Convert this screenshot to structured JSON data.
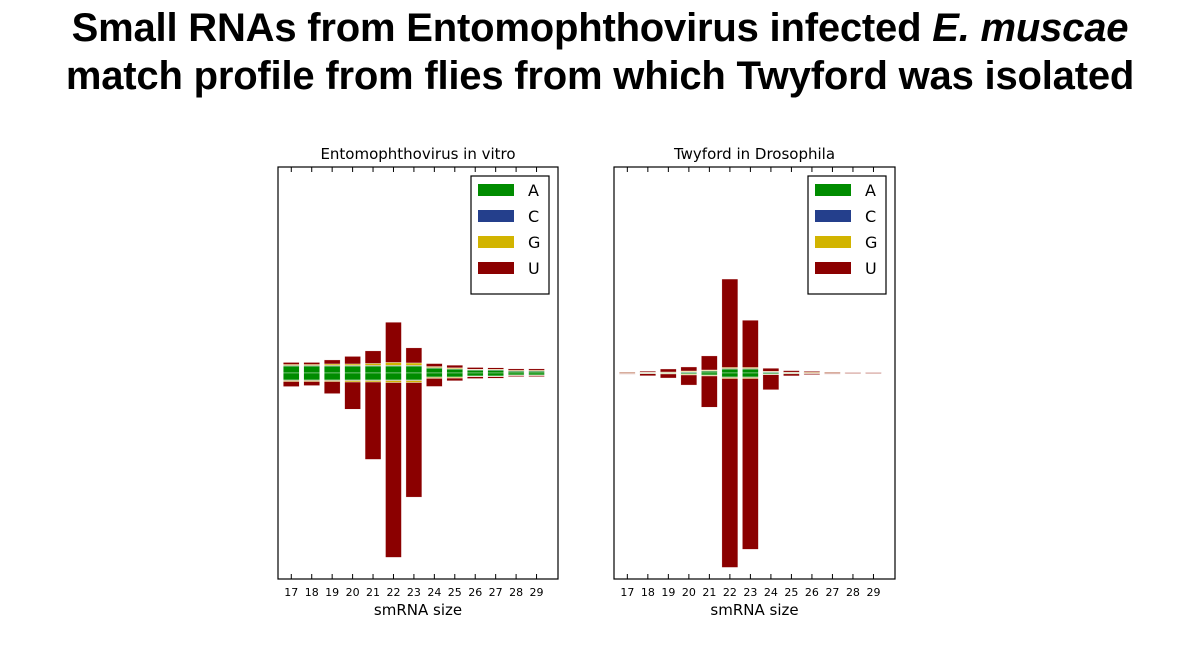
{
  "slide": {
    "title_line1_prefix": "Small RNAs from Entomophthovirus infected ",
    "title_line1_italic": "E. muscae",
    "title_line2": "match profile from flies from which Twyford was isolated"
  },
  "colors": {
    "A": "#008c00",
    "C": "#243f8c",
    "G": "#d2b400",
    "U": "#8b0000"
  },
  "chart_data": [
    {
      "type": "bar",
      "title": "Entomophthovirus in vitro",
      "xlabel": "smRNA size",
      "ylabel": "",
      "categories": [
        "17",
        "18",
        "19",
        "20",
        "21",
        "22",
        "23",
        "24",
        "25",
        "26",
        "27",
        "28",
        "29"
      ],
      "legend": [
        "A",
        "C",
        "G",
        "U"
      ],
      "legend_position": "top-right",
      "ylim": [
        -205,
        205
      ],
      "y_ticks_shown": false,
      "grid": false,
      "note": "positive = sense reads above baseline, negative = antisense reads below; values are stacked per nucleotide (A, C, G, U from baseline outward)",
      "series": [
        {
          "name": "A",
          "positive": [
            7,
            7,
            7,
            7,
            7,
            7,
            7,
            5,
            4,
            3,
            3,
            2,
            2
          ],
          "negative": [
            -7,
            -7,
            -7,
            -7,
            -7,
            -7,
            -7,
            -4,
            -4,
            -3,
            -3,
            -2,
            -2
          ]
        },
        {
          "name": "C",
          "positive": [
            0.5,
            0.5,
            0.5,
            0.5,
            0.5,
            0.5,
            0.5,
            0.4,
            0.3,
            0.3,
            0.2,
            0.2,
            0.2
          ],
          "negative": [
            -0.5,
            -0.5,
            -0.5,
            -0.5,
            -0.5,
            -0.5,
            -0.5,
            -0.4,
            -0.3,
            -0.3,
            -0.2,
            -0.2,
            -0.2
          ]
        },
        {
          "name": "G",
          "positive": [
            1,
            1,
            1.5,
            1.5,
            2,
            3,
            2.5,
            1,
            0.8,
            0.5,
            0.5,
            0.4,
            0.4
          ],
          "negative": [
            -1,
            -1,
            -1,
            -1.5,
            -1.5,
            -2,
            -2,
            -1,
            -0.8,
            -0.5,
            -0.5,
            -0.4,
            -0.4
          ]
        },
        {
          "name": "U",
          "positive": [
            2,
            2,
            4,
            7.5,
            12.5,
            40,
            15,
            3,
            2.7,
            1.7,
            1.5,
            1.5,
            1.5
          ],
          "negative": [
            -5,
            -4,
            -12,
            -27,
            -77,
            -174,
            -114,
            -8,
            -2.7,
            -1.7,
            -1.5,
            -1,
            -1
          ]
        }
      ]
    },
    {
      "type": "bar",
      "title": "Twyford in Drosophila",
      "xlabel": "smRNA size",
      "ylabel": "",
      "categories": [
        "17",
        "18",
        "19",
        "20",
        "21",
        "22",
        "23",
        "24",
        "25",
        "26",
        "27",
        "28",
        "29"
      ],
      "legend": [
        "A",
        "C",
        "G",
        "U"
      ],
      "legend_position": "top-right",
      "ylim": [
        -205,
        205
      ],
      "y_ticks_shown": false,
      "grid": false,
      "note": "positive = sense reads above baseline, negative = antisense reads below; values are stacked per nucleotide (A, C, G, U from baseline outward)",
      "series": [
        {
          "name": "A",
          "positive": [
            0.3,
            0.5,
            0.5,
            1,
            2,
            4,
            4,
            1,
            0.5,
            0.3,
            0.2,
            0.1,
            0.1
          ],
          "negative": [
            -0.3,
            -0.5,
            -0.5,
            -1,
            -2,
            -4,
            -4,
            -1,
            -0.5,
            -0.3,
            -0.2,
            -0.1,
            -0.1
          ]
        },
        {
          "name": "C",
          "positive": [
            0.1,
            0.1,
            0.1,
            0.2,
            0.3,
            0.5,
            0.5,
            0.2,
            0.1,
            0.1,
            0.1,
            0.1,
            0.1
          ],
          "negative": [
            -0.1,
            -0.1,
            -0.1,
            -0.2,
            -0.3,
            -0.5,
            -0.5,
            -0.2,
            -0.1,
            -0.1,
            -0.1,
            -0.1,
            -0.1
          ]
        },
        {
          "name": "G",
          "positive": [
            0.2,
            0.2,
            0.4,
            0.8,
            0.7,
            1,
            1,
            0.5,
            0.3,
            0.2,
            0.2,
            0.1,
            0.1
          ],
          "negative": [
            -0.2,
            -0.2,
            -0.4,
            -0.8,
            -0.7,
            -1,
            -1,
            -0.5,
            -0.3,
            -0.2,
            -0.2,
            -0.1,
            -0.1
          ]
        },
        {
          "name": "U",
          "positive": [
            0.4,
            1,
            3,
            4,
            14,
            88,
            47,
            3,
            1.5,
            1,
            0.5,
            0.5,
            0.5
          ],
          "negative": [
            -0.4,
            -2,
            -4,
            -10,
            -31,
            -188,
            -170,
            -15,
            -2,
            -1,
            -0.5,
            -0.5,
            -0.5
          ]
        }
      ]
    }
  ]
}
